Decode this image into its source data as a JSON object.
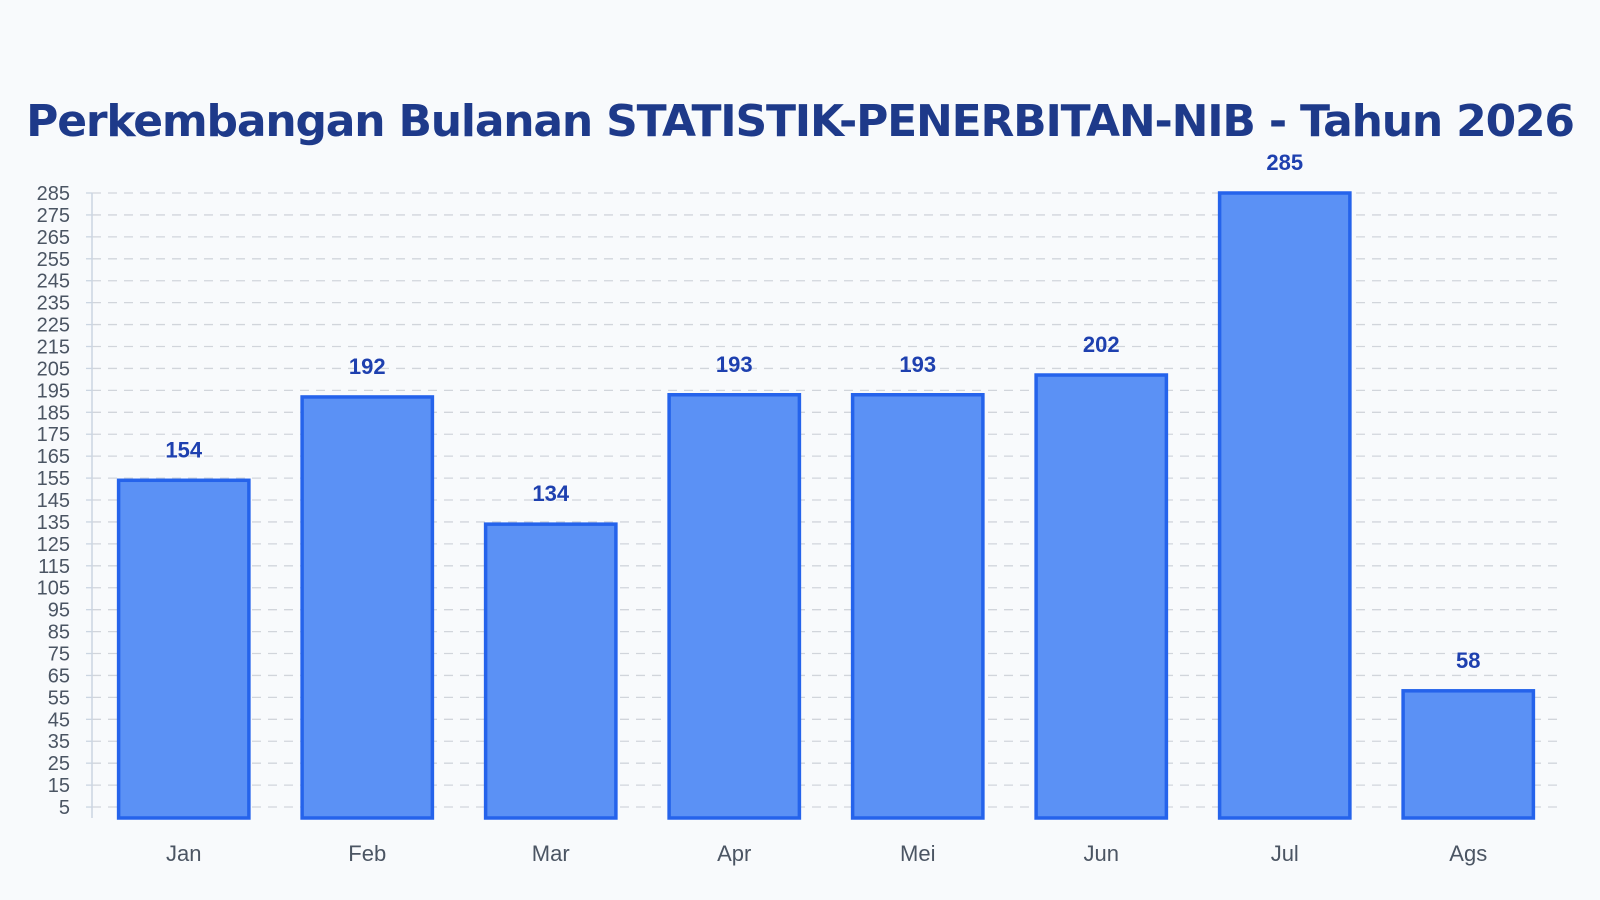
{
  "chart_data": {
    "type": "bar",
    "title": "Perkembangan Bulanan STATISTIK-PENERBITAN-NIB - Tahun 2026",
    "xlabel": "",
    "ylabel": "",
    "categories": [
      "Jan",
      "Feb",
      "Mar",
      "Apr",
      "Mei",
      "Jun",
      "Jul",
      "Ags"
    ],
    "values": [
      154,
      192,
      134,
      193,
      193,
      202,
      285,
      58
    ],
    "ylim": [
      0,
      285
    ],
    "yticks": [
      5,
      15,
      25,
      35,
      45,
      55,
      65,
      75,
      85,
      95,
      105,
      115,
      125,
      135,
      145,
      155,
      165,
      175,
      185,
      195,
      205,
      215,
      225,
      235,
      245,
      255,
      265,
      275,
      285
    ],
    "grid": true,
    "grid_style": "dashed",
    "legend": false,
    "colors": {
      "bar_fill": "#5b91f5",
      "bar_stroke": "#2563eb",
      "data_label": "#1e40af",
      "title": "#1e3a8a",
      "grid": "#d1d5db",
      "axis": "#cbd5e1",
      "tick_label": "#4b5563"
    }
  }
}
